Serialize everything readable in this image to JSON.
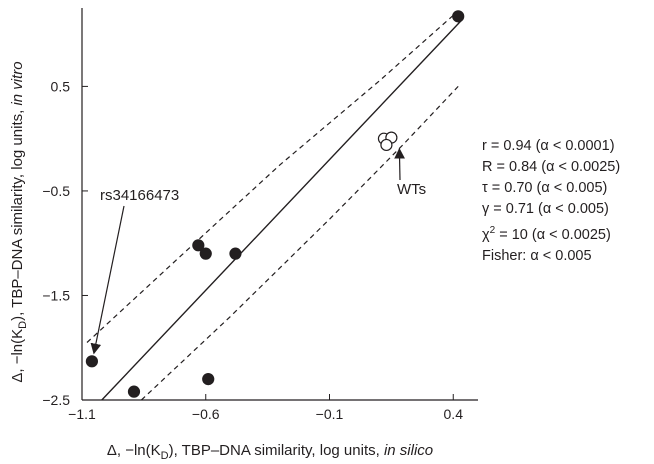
{
  "chart_data": {
    "type": "scatter",
    "xlabel": "Δ, −ln(K_D), TBP–DNA similarity, log units, in silico",
    "xlabel_parts": {
      "main": "Δ, −ln(K",
      "sub": "D",
      "rest": "), TBP–DNA similarity, log units, ",
      "italic": "in silico"
    },
    "ylabel": "Δ, −ln(K_D), TBP–DNA similarity, log units, in vitro",
    "ylabel_parts": {
      "main": "Δ, −ln(K",
      "sub": "D",
      "rest": "), TBP–DNA similarity, log units, ",
      "italic": "in vitro"
    },
    "xlim": [
      -1.1,
      0.5
    ],
    "ylim": [
      -2.5,
      1.25
    ],
    "x_ticks": [
      {
        "value": -1.1,
        "label": "−1.1"
      },
      {
        "value": -0.6,
        "label": "−0.6"
      },
      {
        "value": -0.1,
        "label": "−0.1"
      },
      {
        "value": 0.4,
        "label": "0.4"
      }
    ],
    "y_ticks": [
      {
        "value": -2.5,
        "label": "−2.5"
      },
      {
        "value": -1.5,
        "label": "−1.5"
      },
      {
        "value": -0.5,
        "label": "−0.5"
      },
      {
        "value": 0.5,
        "label": "0.5"
      }
    ],
    "series": [
      {
        "kind": "filled",
        "points": [
          [
            -1.06,
            -2.13
          ],
          [
            -0.89,
            -2.42
          ],
          [
            -0.63,
            -1.02
          ],
          [
            -0.6,
            -1.1
          ],
          [
            -0.48,
            -1.1
          ],
          [
            -0.59,
            -2.3
          ],
          [
            0.42,
            1.17
          ]
        ]
      },
      {
        "kind": "open",
        "points": [
          [
            0.12,
            0.0
          ],
          [
            0.15,
            0.01
          ],
          [
            0.13,
            -0.06
          ]
        ]
      }
    ],
    "regression_line": {
      "x": [
        -1.02,
        0.44
      ],
      "y": [
        -2.5,
        1.15
      ]
    },
    "confidence_upper": {
      "x": [
        -1.08,
        -0.7,
        -0.3,
        0.1,
        0.41
      ],
      "y": [
        -1.95,
        -1.12,
        -0.25,
        0.55,
        1.2
      ]
    },
    "confidence_lower": {
      "x": [
        -0.86,
        -0.5,
        -0.1,
        0.2,
        0.42
      ],
      "y": [
        -2.5,
        -1.7,
        -0.77,
        -0.05,
        0.5
      ]
    },
    "annotations": [
      {
        "text": "rs34166473",
        "target": [
          -1.06,
          -2.13
        ]
      },
      {
        "text": "WTs",
        "target": [
          0.15,
          -0.1
        ]
      }
    ]
  },
  "stats": {
    "lines": [
      {
        "text": "r = 0.94 (α < 0.0001)"
      },
      {
        "text": "R = 0.84 (α < 0.0025)"
      },
      {
        "text": "τ = 0.70 (α < 0.005)"
      },
      {
        "text": "γ = 0.71 (α < 0.005)"
      },
      {
        "pre": "χ",
        "sup": "2",
        "post": " = 10 (α < 0.0025)"
      },
      {
        "text": "Fisher: α < 0.005"
      }
    ]
  }
}
